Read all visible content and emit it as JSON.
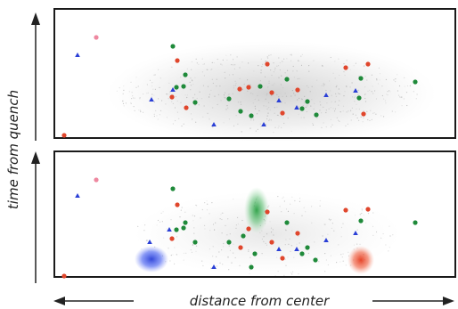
{
  "labels": {
    "y_axis": "time from quench",
    "x_axis": "distance from center"
  },
  "colors": {
    "frame": "#1a1a1a",
    "axis_arrow": "#222222",
    "label_text": "#222222",
    "haze": "#9a9a9a",
    "red": "#e0462c",
    "green": "#1f8a3a",
    "blue": "#2a3fd6",
    "pink": "#ee88a0"
  }
}
